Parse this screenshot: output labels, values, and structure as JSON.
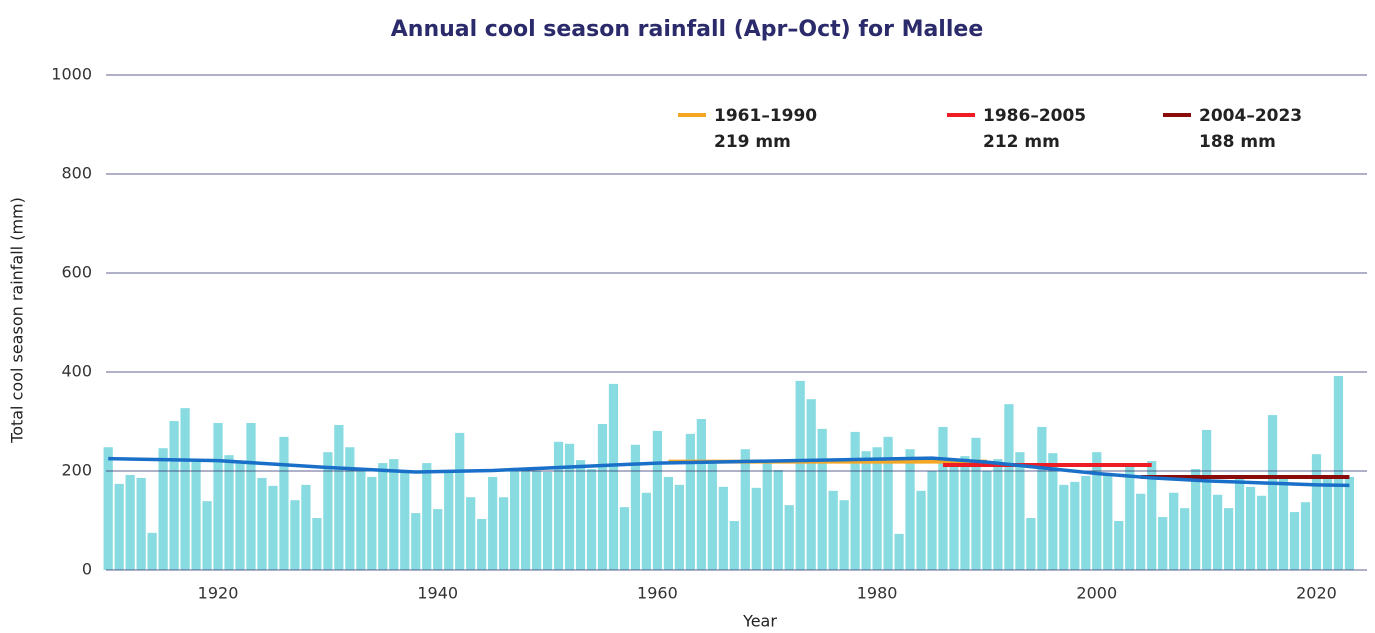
{
  "chart_data": {
    "type": "bar",
    "title": "Annual cool season rainfall (Apr–Oct) for Mallee",
    "x_label": "Year",
    "y_label": "Total cool season rainfall (mm)",
    "x": [
      1910,
      1911,
      1912,
      1913,
      1914,
      1915,
      1916,
      1917,
      1918,
      1919,
      1920,
      1921,
      1922,
      1923,
      1924,
      1925,
      1926,
      1927,
      1928,
      1929,
      1930,
      1931,
      1932,
      1933,
      1934,
      1935,
      1936,
      1937,
      1938,
      1939,
      1940,
      1941,
      1942,
      1943,
      1944,
      1945,
      1946,
      1947,
      1948,
      1949,
      1950,
      1951,
      1952,
      1953,
      1954,
      1955,
      1956,
      1957,
      1958,
      1959,
      1960,
      1961,
      1962,
      1963,
      1964,
      1965,
      1966,
      1967,
      1968,
      1969,
      1970,
      1971,
      1972,
      1973,
      1974,
      1975,
      1976,
      1977,
      1978,
      1979,
      1980,
      1981,
      1982,
      1983,
      1984,
      1985,
      1986,
      1987,
      1988,
      1989,
      1990,
      1991,
      1992,
      1993,
      1994,
      1995,
      1996,
      1997,
      1998,
      1999,
      2000,
      2001,
      2002,
      2003,
      2004,
      2005,
      2006,
      2007,
      2008,
      2009,
      2010,
      2011,
      2012,
      2013,
      2014,
      2015,
      2016,
      2017,
      2018,
      2019,
      2020,
      2021,
      2022,
      2023
    ],
    "values": [
      248,
      174,
      192,
      186,
      75,
      246,
      301,
      327,
      222,
      139,
      297,
      232,
      216,
      297,
      186,
      170,
      269,
      141,
      172,
      105,
      238,
      293,
      248,
      204,
      188,
      216,
      224,
      200,
      115,
      216,
      123,
      202,
      277,
      147,
      103,
      188,
      147,
      200,
      206,
      200,
      198,
      259,
      255,
      222,
      204,
      295,
      376,
      127,
      253,
      156,
      281,
      188,
      172,
      275,
      305,
      216,
      168,
      99,
      244,
      166,
      216,
      202,
      131,
      382,
      345,
      285,
      160,
      141,
      279,
      240,
      248,
      269,
      73,
      244,
      160,
      200,
      289,
      224,
      230,
      267,
      200,
      224,
      335,
      238,
      105,
      289,
      236,
      172,
      178,
      190,
      238,
      192,
      99,
      210,
      154,
      220,
      107,
      156,
      125,
      204,
      283,
      152,
      125,
      190,
      168,
      150,
      313,
      188,
      117,
      137,
      234,
      190,
      392,
      188
    ],
    "color": "#88dbe0",
    "trend": {
      "color": "#1a70c8",
      "x": [
        1910,
        1920,
        1930,
        1938,
        1945,
        1950,
        1960,
        1970,
        1980,
        1985,
        1990,
        2000,
        2005,
        2010,
        2020,
        2023
      ],
      "values": [
        225,
        221,
        207,
        198,
        201,
        206,
        216,
        220,
        224,
        226,
        218,
        195,
        186,
        180,
        172,
        171
      ]
    },
    "reference_periods": [
      {
        "label": "1961–1990",
        "value_label": "219 mm",
        "start": 1961,
        "end": 1990,
        "value": 219,
        "color": "#f5a623"
      },
      {
        "label": "1986–2005",
        "value_label": "212 mm",
        "start": 1986,
        "end": 2005,
        "value": 212,
        "color": "#ee1c25"
      },
      {
        "label": "2004–2023",
        "value_label": "188 mm",
        "start": 2004,
        "end": 2023,
        "value": 188,
        "color": "#8b0a0a"
      }
    ],
    "xlim": [
      1909.8,
      2024.6
    ],
    "xticks": [
      1920,
      1940,
      1960,
      1980,
      2000,
      2020
    ],
    "ylim": [
      0,
      1000
    ],
    "yticks": [
      0,
      200,
      400,
      600,
      800,
      1000
    ],
    "grid": true
  }
}
